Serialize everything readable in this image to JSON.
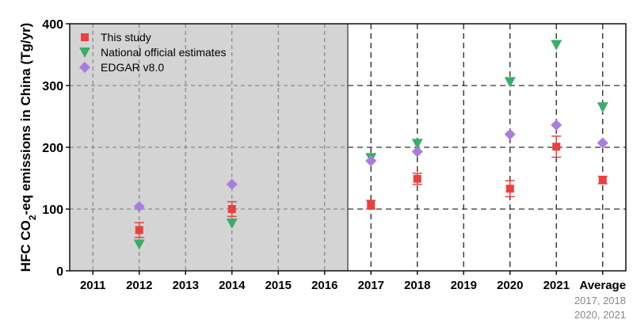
{
  "chart_data": {
    "type": "scatter",
    "ylabel_parts": {
      "a": "HFC CO",
      "sub": "2",
      "b": "-eq emissions in China (Tg/yr)"
    },
    "ylim": [
      0,
      400
    ],
    "yticks": [
      0,
      100,
      200,
      300,
      400
    ],
    "categories": [
      "2011",
      "2012",
      "2013",
      "2014",
      "2015",
      "2016",
      "2017",
      "2018",
      "2019",
      "2020",
      "2021",
      "Average"
    ],
    "average_note": [
      "2017, 2018",
      "2020, 2021"
    ],
    "shaded_categories": [
      "2011",
      "2012",
      "2013",
      "2014",
      "2015",
      "2016"
    ],
    "grid": true,
    "legend_position": "top-left",
    "series": [
      {
        "name": "This study",
        "marker": "square",
        "color": "#e8413f",
        "points": [
          {
            "x": "2012",
            "y": 66,
            "err": 12
          },
          {
            "x": "2014",
            "y": 100,
            "err": 12
          },
          {
            "x": "2017",
            "y": 107,
            "err": 7
          },
          {
            "x": "2018",
            "y": 149,
            "err": 9
          },
          {
            "x": "2020",
            "y": 133,
            "err": 13
          },
          {
            "x": "2021",
            "y": 201,
            "err": 17
          },
          {
            "x": "Average",
            "y": 147,
            "err": 6
          }
        ]
      },
      {
        "name": "National official estimates",
        "marker": "triangle-down",
        "color": "#3aad66",
        "points": [
          {
            "x": "2012",
            "y": 43
          },
          {
            "x": "2014",
            "y": 77
          },
          {
            "x": "2017",
            "y": 183
          },
          {
            "x": "2018",
            "y": 206
          },
          {
            "x": "2020",
            "y": 306
          },
          {
            "x": "2021",
            "y": 366
          },
          {
            "x": "Average",
            "y": 265
          }
        ]
      },
      {
        "name": "EDGAR v8.0",
        "marker": "diamond",
        "color": "#a97de0",
        "points": [
          {
            "x": "2012",
            "y": 104
          },
          {
            "x": "2014",
            "y": 140
          },
          {
            "x": "2017",
            "y": 178
          },
          {
            "x": "2018",
            "y": 193
          },
          {
            "x": "2020",
            "y": 221
          },
          {
            "x": "2021",
            "y": 236
          },
          {
            "x": "Average",
            "y": 207
          }
        ]
      }
    ]
  }
}
